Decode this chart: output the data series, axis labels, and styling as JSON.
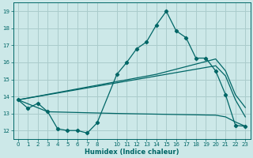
{
  "xlabel": "Humidex (Indice chaleur)",
  "bg_color": "#cce8e8",
  "grid_color": "#aacccc",
  "line_color": "#006666",
  "xlim": [
    -0.5,
    23.5
  ],
  "ylim": [
    11.5,
    19.5
  ],
  "xticks": [
    0,
    1,
    2,
    3,
    4,
    5,
    6,
    7,
    8,
    10,
    11,
    12,
    13,
    14,
    15,
    16,
    17,
    18,
    19,
    20,
    21,
    22,
    23
  ],
  "yticks": [
    12,
    13,
    14,
    15,
    16,
    17,
    18,
    19
  ],
  "line1_x": [
    0,
    1,
    2,
    3,
    4,
    5,
    6,
    7,
    8,
    10,
    11,
    12,
    13,
    14,
    15,
    16,
    17,
    18,
    19,
    20,
    21,
    22,
    23
  ],
  "line1_y": [
    13.8,
    13.3,
    13.6,
    13.1,
    12.1,
    12.0,
    12.0,
    11.85,
    12.45,
    15.3,
    16.0,
    16.8,
    17.2,
    18.2,
    19.0,
    17.85,
    17.45,
    16.25,
    16.25,
    15.5,
    14.1,
    12.3,
    12.25
  ],
  "line2_x": [
    0,
    14,
    20,
    21,
    22,
    23
  ],
  "line2_y": [
    13.8,
    15.3,
    16.2,
    15.5,
    14.1,
    13.35
  ],
  "line3_x": [
    0,
    20,
    21,
    22,
    23
  ],
  "line3_y": [
    13.8,
    15.8,
    15.2,
    13.8,
    12.8
  ],
  "line4_x": [
    0,
    3,
    10,
    20,
    21,
    22,
    23
  ],
  "line4_y": [
    13.8,
    13.1,
    13.0,
    12.9,
    12.8,
    12.5,
    12.25
  ]
}
